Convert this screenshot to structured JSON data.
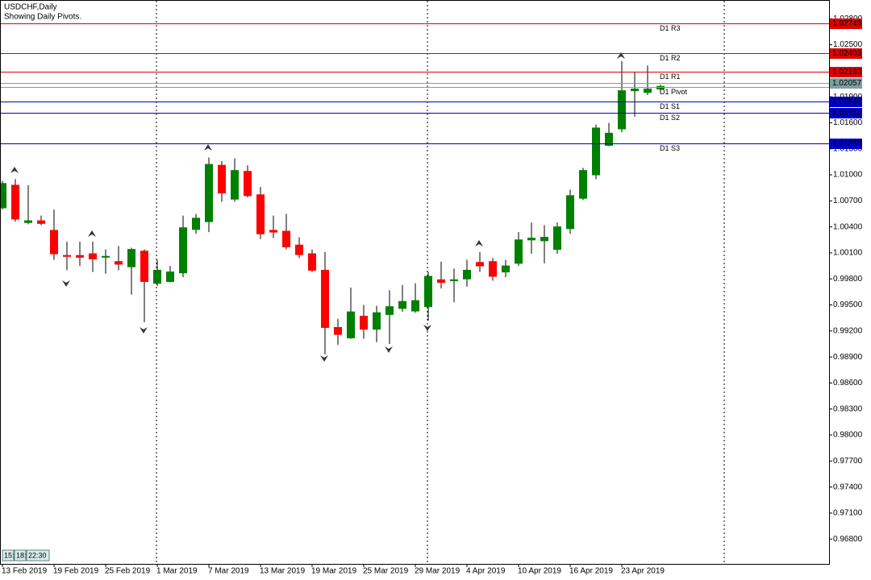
{
  "chart_data": {
    "type": "candlestick",
    "title": "USDCHF,Daily",
    "subtitle": "Showing Daily Pivots.",
    "categories": [
      "13 Feb 2019",
      null,
      null,
      null,
      "19 Feb 2019",
      null,
      null,
      null,
      "25 Feb 2019",
      null,
      null,
      null,
      "1 Mar 2019",
      null,
      null,
      null,
      "7 Mar 2019",
      null,
      null,
      null,
      "13 Mar 2019",
      null,
      null,
      null,
      "19 Mar 2019",
      null,
      null,
      null,
      "25 Mar 2019",
      null,
      null,
      null,
      "29 Mar 2019",
      null,
      null,
      null,
      "4 Apr 2019",
      null,
      null,
      null,
      "10 Apr 2019",
      null,
      null,
      null,
      "16 Apr 2019",
      null,
      null,
      null,
      "23 Apr 2019",
      null,
      null,
      null
    ],
    "open": [
      1.0062,
      1.0088,
      1.0045,
      1.0047,
      1.0036,
      1.0007,
      1.0007,
      1.0009,
      1.0005,
      1.0,
      0.9994,
      1.0012,
      0.9975,
      0.9977,
      0.9987,
      1.0037,
      1.0046,
      1.0111,
      1.0072,
      1.0104,
      1.0077,
      1.0036,
      1.0035,
      1.0019,
      1.0009,
      0.999,
      0.9924,
      0.9912,
      0.9937,
      0.9922,
      0.9939,
      0.9946,
      0.9943,
      0.9948,
      0.9979,
      0.9978,
      0.998,
      0.9999,
      1.0,
      0.9988,
      0.9998,
      1.0025,
      1.0024,
      1.0014,
      1.0038,
      1.0073,
      1.01,
      1.0134,
      1.0153,
      1.0197,
      1.0195,
      1.0199
    ],
    "high": [
      1.0093,
      1.0095,
      1.0088,
      1.0053,
      1.006,
      1.0023,
      1.0023,
      1.0023,
      1.0014,
      1.0018,
      1.0016,
      1.0014,
      1.0002,
      0.9995,
      1.0053,
      1.0055,
      1.012,
      1.0116,
      1.0119,
      1.0111,
      1.0086,
      1.0053,
      1.0055,
      1.0028,
      1.0014,
      1.0011,
      0.9934,
      0.997,
      0.995,
      0.9949,
      0.9967,
      0.9973,
      0.9975,
      0.9988,
      1.0,
      0.9992,
      1.0002,
      1.0011,
      1.0004,
      1.0002,
      1.0034,
      1.0045,
      1.0042,
      1.0045,
      1.0083,
      1.0108,
      1.0158,
      1.016,
      1.0231,
      1.0218,
      1.0226,
      1.0204
    ],
    "low": [
      1.006,
      1.0046,
      1.0043,
      1.0042,
      1.0002,
      0.999,
      0.9995,
      0.9988,
      0.9986,
      0.999,
      0.9962,
      0.993,
      0.9972,
      0.9976,
      0.9982,
      1.0032,
      1.0034,
      1.0069,
      1.0069,
      1.0074,
      1.0026,
      1.0027,
      1.0014,
      1.0004,
      0.9988,
      0.9893,
      0.9904,
      0.9911,
      0.9911,
      0.9907,
      0.9905,
      0.9942,
      0.9941,
      0.9932,
      0.9969,
      0.9953,
      0.9971,
      0.9988,
      0.9978,
      0.9982,
      0.9995,
      1.0009,
      0.9998,
      1.0009,
      1.0032,
      1.0071,
      1.0095,
      1.0133,
      1.0149,
      1.0167,
      1.0192,
      1.0195
    ],
    "close": [
      1.009,
      1.0049,
      1.0047,
      1.0044,
      1.0009,
      1.0006,
      1.0005,
      1.0003,
      1.0006,
      0.9997,
      1.0014,
      0.9977,
      0.999,
      0.9988,
      1.0039,
      1.005,
      1.0112,
      1.0079,
      1.0105,
      1.0076,
      1.0032,
      1.0034,
      1.0017,
      1.0008,
      0.999,
      0.9924,
      0.9916,
      0.9942,
      0.9922,
      0.9941,
      0.9948,
      0.9954,
      0.9955,
      0.9983,
      0.9976,
      0.9979,
      0.999,
      0.9995,
      0.9983,
      0.9995,
      1.0025,
      1.0027,
      1.0028,
      1.004,
      1.0076,
      1.0105,
      1.0154,
      1.0148,
      1.0197,
      1.0199,
      1.0199,
      1.0202
    ],
    "up_color": "#008000",
    "down_color": "#ff0000",
    "wick_color": "#000000",
    "ylim": [
      0.96514,
      1.03016
    ],
    "yticks": [
      {
        "value": 1.028,
        "label": "1.02800"
      },
      {
        "value": 1.025,
        "label": "1.02500"
      },
      {
        "value": 1.022,
        "label": "1.02200"
      },
      {
        "value": 1.019,
        "label": "1.01900"
      },
      {
        "value": 1.016,
        "label": "1.01600"
      },
      {
        "value": 1.013,
        "label": "1.01300"
      },
      {
        "value": 1.01,
        "label": "1.01000"
      },
      {
        "value": 1.007,
        "label": "1.00700"
      },
      {
        "value": 1.004,
        "label": "1.00400"
      },
      {
        "value": 1.001,
        "label": "1.00100"
      },
      {
        "value": 0.998,
        "label": "0.99800"
      },
      {
        "value": 0.995,
        "label": "0.99500"
      },
      {
        "value": 0.992,
        "label": "0.99200"
      },
      {
        "value": 0.989,
        "label": "0.98900"
      },
      {
        "value": 0.986,
        "label": "0.98600"
      },
      {
        "value": 0.983,
        "label": "0.98300"
      },
      {
        "value": 0.98,
        "label": "0.98000"
      },
      {
        "value": 0.977,
        "label": "0.97700"
      },
      {
        "value": 0.974,
        "label": "0.97400"
      },
      {
        "value": 0.971,
        "label": "0.97100"
      },
      {
        "value": 0.968,
        "label": "0.96800"
      }
    ],
    "levels": [
      {
        "name": "D1 R3",
        "value": 1.02749,
        "color": "#e00000",
        "price_box": true
      },
      {
        "name": "D1 R2",
        "value": 1.02403,
        "color": "#e00000",
        "price_box": true
      },
      {
        "name": "D1 R1",
        "value": 1.02193,
        "color": "#e00000",
        "price_box": true
      },
      {
        "name": "D1 Pivot",
        "value": 1.0201,
        "color": "#7f9f9f",
        "price_box": false
      },
      {
        "name": "D1 S1",
        "value": 1.01847,
        "color": "#0000cc",
        "price_box": true
      },
      {
        "name": "D1 S2",
        "value": 1.01711,
        "color": "#0000cc",
        "price_box": true
      },
      {
        "name": "D1 S3",
        "value": 1.01365,
        "color": "#0000cc",
        "price_box": true
      }
    ],
    "current_price": 1.02057,
    "current_price_color": "#7f9f9f",
    "countdown": [
      "15:",
      "18:",
      "22:30"
    ]
  }
}
